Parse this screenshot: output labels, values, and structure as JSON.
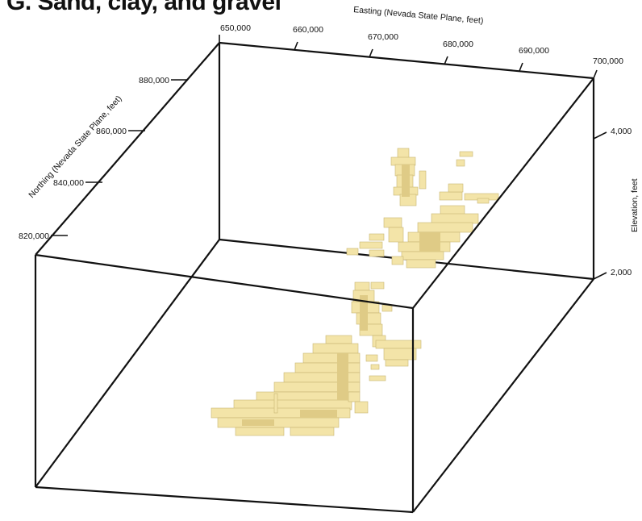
{
  "figure": {
    "title": "G. Sand, clay, and gravel",
    "easting_axis": {
      "label": "Easting (Nevada State Plane, feet)",
      "ticks": [
        "650,000",
        "660,000",
        "670,000",
        "680,000",
        "690,000",
        "700,000"
      ]
    },
    "northing_axis": {
      "label": "Northing (Nevada State Plane, feet)",
      "ticks": [
        "880,000",
        "860,000",
        "840,000",
        "820,000"
      ]
    },
    "elevation_axis": {
      "label": "Elevation, feet",
      "ticks": [
        "4,000",
        "2,000"
      ]
    },
    "colors": {
      "lithology_fill": "#f3e4a8",
      "lithology_edge": "#c9b673",
      "box_edge": "#111111"
    }
  }
}
